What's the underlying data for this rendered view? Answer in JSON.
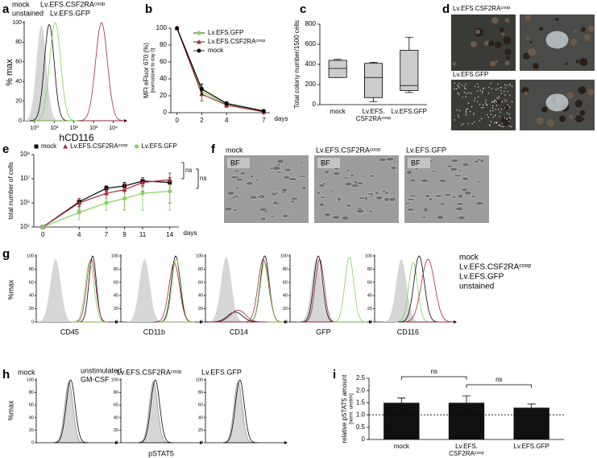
{
  "panel_labels": [
    "a",
    "b",
    "c",
    "d",
    "e",
    "f",
    "g",
    "h",
    "i"
  ],
  "flow_a": {
    "legend": [
      {
        "name": "mock",
        "color": "#000000"
      },
      {
        "name": "Lv.EFS.CSF2RAᶜᵒᵒᵖ",
        "color": "#a8283a"
      },
      {
        "name": "unstained",
        "color": "#b0b0b0"
      },
      {
        "name": "Lv.EFS.GFP",
        "color": "#7fd35a"
      }
    ],
    "ylabel": "% max",
    "xlabel": "hCD116",
    "ylim": [
      0,
      100
    ],
    "yticks": [
      0,
      20,
      40,
      60,
      80,
      100
    ],
    "log_x": true,
    "xlim": [
      0.3,
      20000
    ],
    "xticks": [
      {
        "value": 1,
        "label": "10⁰"
      },
      {
        "value": 10,
        "label": "10¹"
      },
      {
        "value": 100,
        "label": "10²"
      },
      {
        "value": 1000,
        "label": "10³"
      },
      {
        "value": 10000,
        "label": "10⁴"
      }
    ]
  },
  "chart_data": [
    {
      "type": "line",
      "ylabel": [
        "MFI eFluor 670 (%)",
        "[normalized to day 0]"
      ],
      "xlabel": "days",
      "x": [
        0,
        2,
        4,
        7
      ],
      "xlim": [
        -0.5,
        7.5
      ],
      "xticks": [
        0,
        2,
        4,
        7
      ],
      "ylim": [
        0,
        100
      ],
      "yticks": [
        0,
        20,
        40,
        60,
        80,
        100
      ],
      "legend": "upper right",
      "series": [
        {
          "name": "Lv.EFS.GFP",
          "color": "#7fd35a",
          "marker": "circle",
          "values": [
            100,
            25,
            10,
            2
          ],
          "errors": [
            0,
            5,
            2,
            1
          ]
        },
        {
          "name": "Lv.EFS.CSF2RAᶜᵒᵒᵖ",
          "color": "#a8283a",
          "marker": "triangle",
          "values": [
            100,
            22,
            9,
            1
          ],
          "errors": [
            0,
            8,
            3,
            1
          ]
        },
        {
          "name": "mock",
          "color": "#000000",
          "marker": "circle",
          "values": [
            100,
            28,
            11,
            2
          ],
          "errors": [
            0,
            6,
            2,
            1
          ]
        }
      ]
    },
    {
      "type": "box",
      "ylabel": "Total colony number/1500 cells",
      "categories": [
        "mock",
        [
          "Lv.EFS.",
          "CSF2RAᶜᵒᵒᵖ"
        ],
        "Lv.EFS.GFP"
      ],
      "ylim": [
        0,
        800
      ],
      "yticks": [
        0,
        200,
        400,
        600,
        800
      ],
      "color": "#cccccc",
      "boxes": [
        {
          "min": 270,
          "q1": 270,
          "median": 360,
          "q3": 440,
          "max": 450
        },
        {
          "min": 30,
          "q1": 70,
          "median": 270,
          "q3": 410,
          "max": 420
        },
        {
          "min": 120,
          "q1": 140,
          "median": 190,
          "q3": 540,
          "max": 670
        }
      ]
    },
    {
      "type": "line",
      "log_y": true,
      "ylabel": "total number of cells",
      "xlabel": "days",
      "x": [
        0,
        4,
        7,
        9,
        11,
        14
      ],
      "xlim": [
        -1,
        15
      ],
      "xticks": [
        0,
        4,
        7,
        9,
        11,
        14
      ],
      "ylim": [
        100000,
        100000000
      ],
      "yticks": [
        {
          "value": 100000,
          "label": "10⁵"
        },
        {
          "value": 1000000,
          "label": "10⁶"
        },
        {
          "value": 10000000,
          "label": "10⁷"
        },
        {
          "value": 100000000,
          "label": "10⁸"
        }
      ],
      "legend": "top",
      "series": [
        {
          "name": "mock",
          "color": "#000000",
          "marker": "square",
          "values": [
            100000,
            1100000,
            4000000,
            5000000,
            8000000,
            7000000
          ],
          "errors": [
            0,
            400000,
            1000000,
            2000000,
            3000000,
            4000000
          ]
        },
        {
          "name": "Lv.EFS.CSF2RAᶜᵒᵒᵖ",
          "color": "#a8283a",
          "marker": "triangle",
          "values": [
            100000,
            1000000,
            2500000,
            3500000,
            7000000,
            9000000
          ],
          "errors": [
            0,
            500000,
            1500000,
            3000000,
            4000000,
            8000000
          ]
        },
        {
          "name": "Lv.EFS.GFP",
          "color": "#7fd35a",
          "marker": "circle",
          "values": [
            100000,
            400000,
            1000000,
            1500000,
            2500000,
            3000000
          ],
          "errors": [
            0,
            200000,
            500000,
            1000000,
            2000000,
            2500000
          ]
        }
      ],
      "annotations": [
        "ns",
        "ns"
      ]
    },
    {
      "type": "bar",
      "ylabel": [
        "relative pSTAT5 amount",
        "[norm. unstim]"
      ],
      "categories": [
        "mock",
        [
          "Lv.EFS.",
          "CSF2RAᶜᵒᵒᵖ"
        ],
        "Lv.EFS.GFP"
      ],
      "values": [
        1.5,
        1.5,
        1.3
      ],
      "errors": [
        0.2,
        0.28,
        0.15
      ],
      "color": "#111111",
      "ylim": [
        0,
        2.5
      ],
      "yticks": [
        0,
        0.5,
        {
          "value": 1,
          "label": "1.0"
        },
        1.5,
        {
          "value": 2,
          "label": "2.0"
        },
        2.5
      ],
      "reference_line": 1,
      "annotations": [
        "ns",
        "ns"
      ]
    }
  ],
  "images_d": {
    "labels": [
      "Lv.EFS.CSF2RAᶜᵒᵒᵖ",
      "Lv.EFS.GFP"
    ]
  },
  "images_f": {
    "titles": [
      "mock",
      "Lv.EFS.CSF2RAᶜᵒᵒᵖ",
      "Lv.EFS.GFP"
    ],
    "tag": "BF"
  },
  "flow_g": {
    "ylabel": "%max",
    "ylim": [
      0,
      100
    ],
    "yticks": [
      0,
      20,
      40,
      60,
      80,
      100
    ],
    "markers": [
      "CD45",
      "CD11b",
      "CD14",
      "GFP",
      "CD116"
    ],
    "legend": [
      {
        "name": "mock",
        "color": "#000000"
      },
      {
        "name": "Lv.EFS.CSF2RAᶜᵒᵒᵖ",
        "color": "#a8283a"
      },
      {
        "name": "Lv.EFS.GFP",
        "color": "#7fd35a"
      },
      {
        "name": "unstained",
        "color": "#b0b0b0"
      }
    ]
  },
  "flow_h": {
    "ylabel": "%max",
    "xlabel": "pSTAT5",
    "ylim": [
      0,
      100
    ],
    "yticks": [
      0,
      20,
      40,
      60,
      80,
      100
    ],
    "titles": [
      "mock",
      "Lv.EFS.CSF2RAᶜᵒᵒᵖ",
      "Lv.EFS.GFP"
    ],
    "legend": [
      {
        "name": "unstimulated",
        "color": "#999999"
      },
      {
        "name": "GM-CSF",
        "color": "#000000"
      }
    ]
  }
}
